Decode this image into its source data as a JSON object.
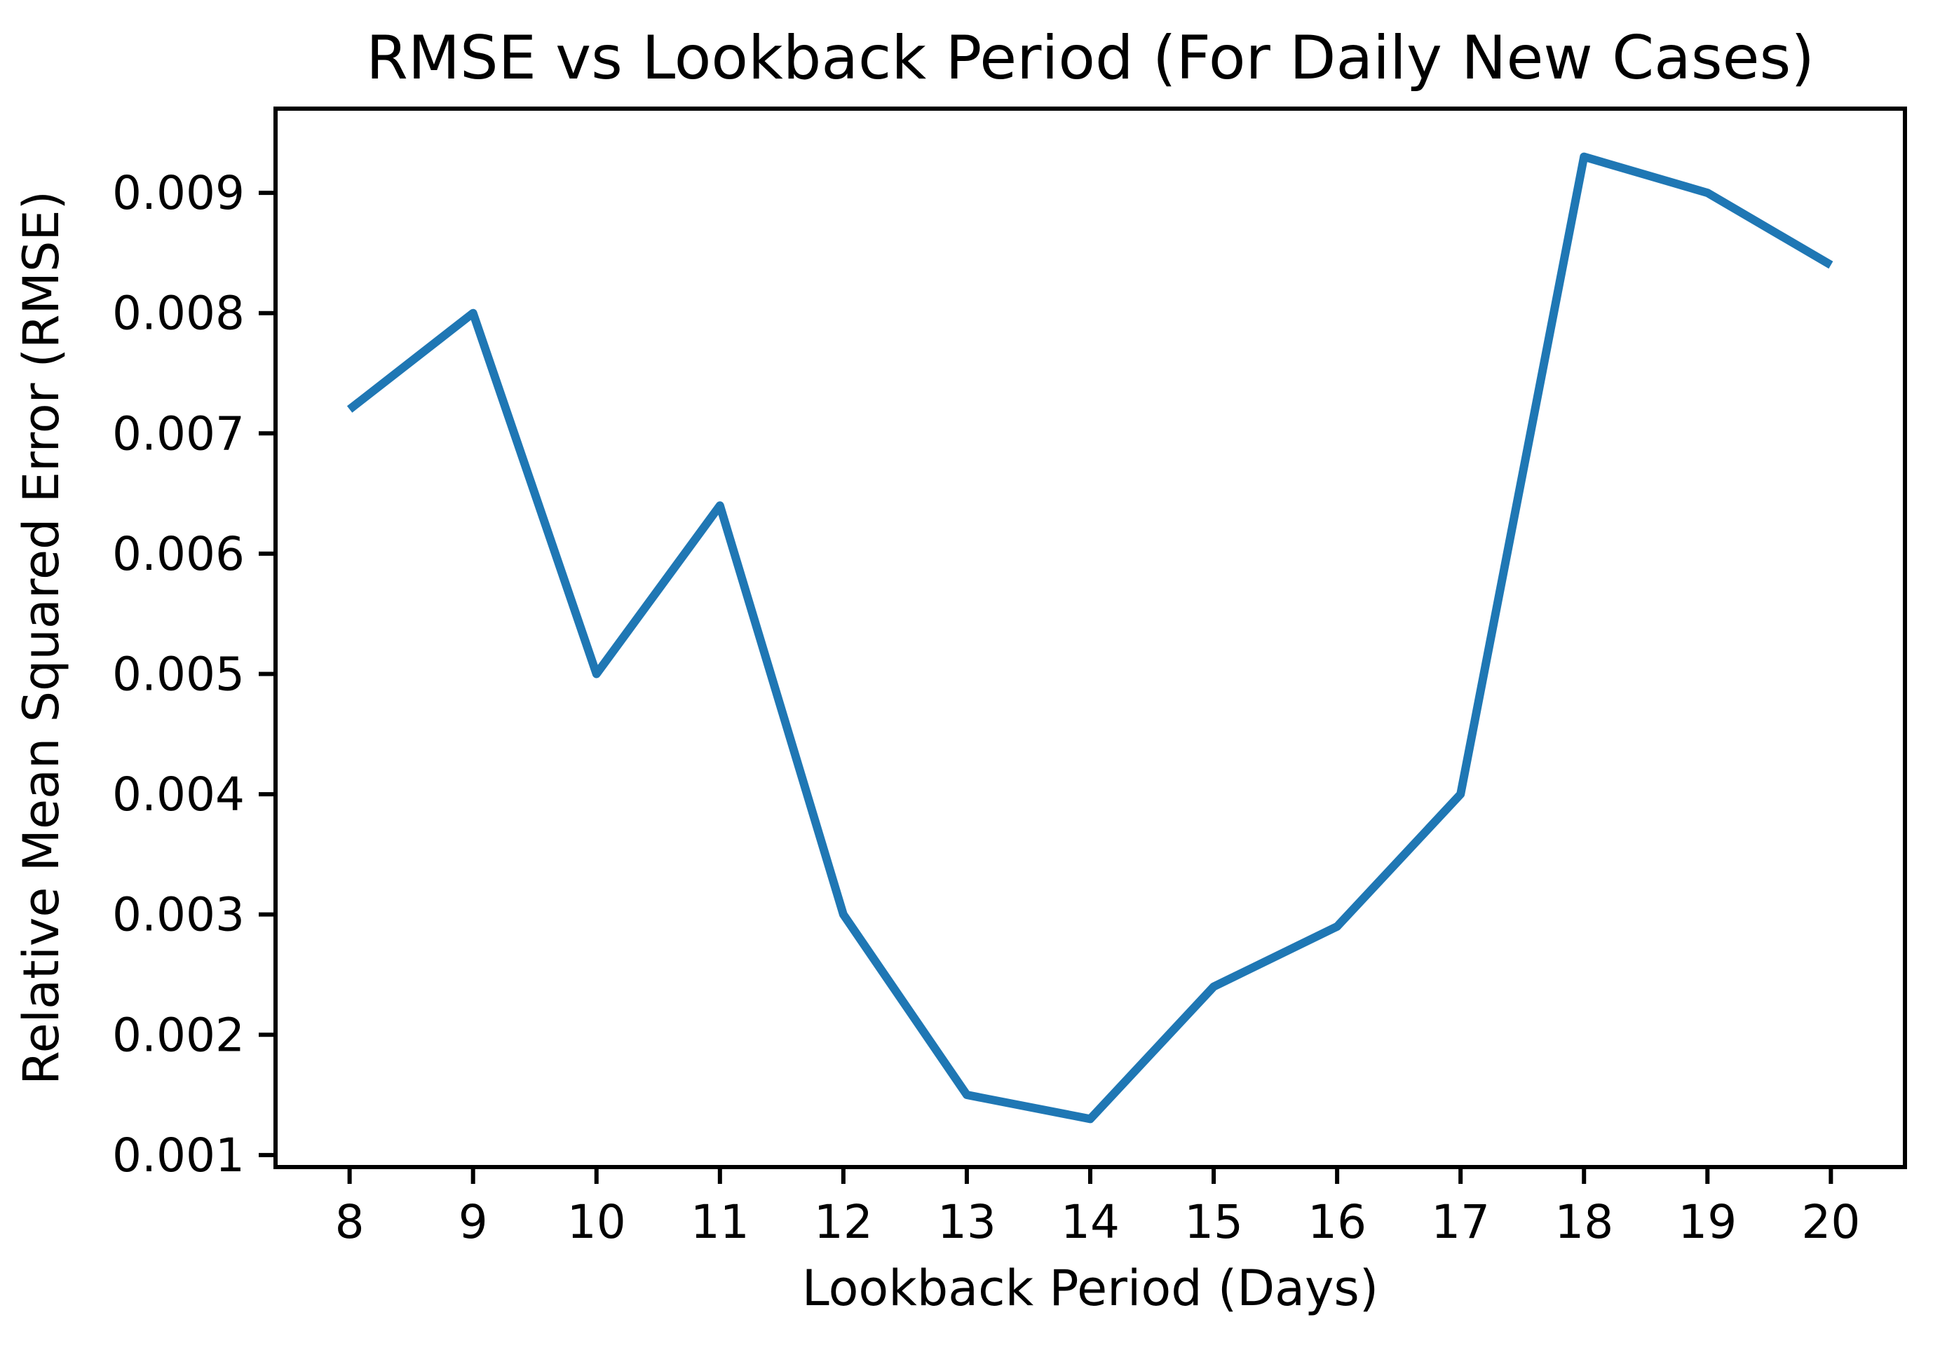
{
  "chart_data": {
    "type": "line",
    "title": "RMSE vs Lookback Period (For Daily New Cases)",
    "xlabel": "Lookback Period (Days)",
    "ylabel": "Relative Mean Squared Error (RMSE)",
    "x": [
      8,
      9,
      10,
      11,
      12,
      13,
      14,
      15,
      16,
      17,
      18,
      19,
      20
    ],
    "y": [
      0.0072,
      0.008,
      0.005,
      0.0064,
      0.003,
      0.0015,
      0.0013,
      0.0024,
      0.0029,
      0.004,
      0.0093,
      0.009,
      0.0084
    ],
    "x_tick_labels": [
      "8",
      "9",
      "10",
      "11",
      "12",
      "13",
      "14",
      "15",
      "16",
      "17",
      "18",
      "19",
      "20"
    ],
    "y_tick_labels": [
      "0.001",
      "0.002",
      "0.003",
      "0.004",
      "0.005",
      "0.006",
      "0.007",
      "0.008",
      "0.009"
    ],
    "xlim": [
      7.4,
      20.6
    ],
    "ylim": [
      0.0009,
      0.0097
    ],
    "grid": false,
    "legend": null,
    "line_color": "#1f77b4",
    "line_width": 12,
    "axis_color": "#000000",
    "background_color": "#ffffff"
  }
}
